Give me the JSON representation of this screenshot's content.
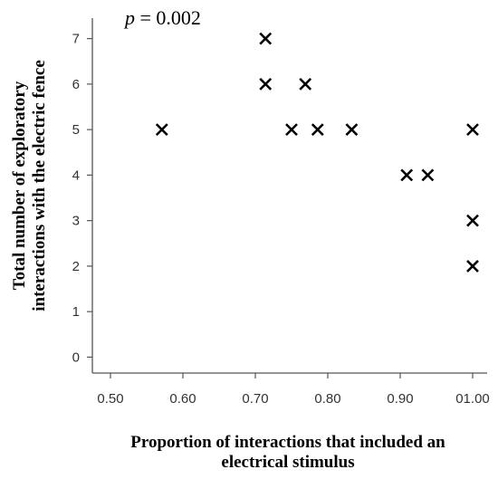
{
  "chart_data": {
    "type": "scatter",
    "annotation": {
      "symbol": "p",
      "text": " = 0.002"
    },
    "xlabel_lines": [
      "Proportion of interactions that included an",
      "electrical stimulus"
    ],
    "ylabel_lines": [
      "Total number of exploratory",
      "interactions with the electric fence"
    ],
    "xlim": [
      0.475,
      1.02
    ],
    "ylim": [
      -0.35,
      7.45
    ],
    "x_ticks": [
      0.5,
      0.6,
      0.7,
      0.8,
      0.9,
      1.0
    ],
    "x_tick_labels": [
      "0.50",
      "0.60",
      "0.70",
      "0.80",
      "0.90",
      "01.00"
    ],
    "y_ticks": [
      0,
      1,
      2,
      3,
      4,
      5,
      6,
      7
    ],
    "y_tick_labels": [
      "0",
      "1",
      "2",
      "3",
      "4",
      "5",
      "6",
      "7"
    ],
    "marker": "x",
    "marker_color": "#000000",
    "axis_color": "#555555",
    "grid": false,
    "points": [
      {
        "x": 0.571,
        "y": 5
      },
      {
        "x": 0.714,
        "y": 7
      },
      {
        "x": 0.714,
        "y": 6
      },
      {
        "x": 0.769,
        "y": 6
      },
      {
        "x": 0.75,
        "y": 5
      },
      {
        "x": 0.786,
        "y": 5
      },
      {
        "x": 0.833,
        "y": 5
      },
      {
        "x": 0.909,
        "y": 4
      },
      {
        "x": 0.938,
        "y": 4
      },
      {
        "x": 1.0,
        "y": 5
      },
      {
        "x": 1.0,
        "y": 3
      },
      {
        "x": 1.0,
        "y": 2
      }
    ]
  }
}
